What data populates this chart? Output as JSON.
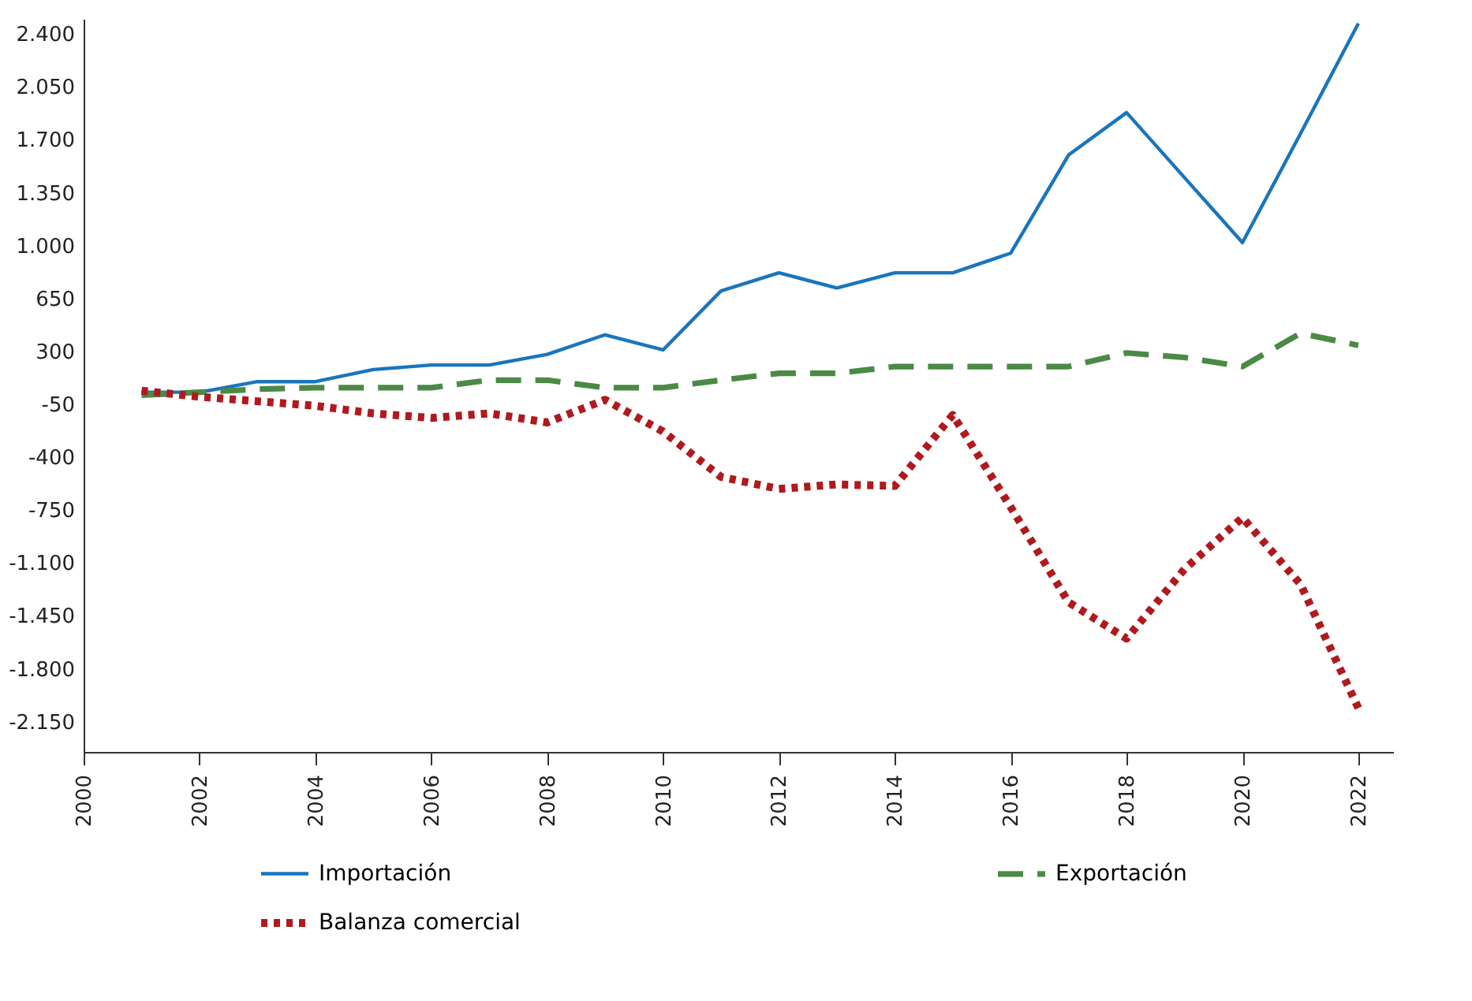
{
  "chart_data": {
    "type": "line",
    "x": [
      2001,
      2002,
      2003,
      2004,
      2005,
      2006,
      2007,
      2008,
      2009,
      2010,
      2011,
      2012,
      2013,
      2014,
      2015,
      2016,
      2017,
      2018,
      2019,
      2020,
      2021,
      2022
    ],
    "series": [
      {
        "name": "Importación",
        "color": "#1a75bc",
        "line_style": "solid",
        "values": [
          30,
          30,
          100,
          100,
          180,
          210,
          210,
          280,
          410,
          310,
          700,
          820,
          720,
          820,
          820,
          950,
          1600,
          1880,
          1450,
          1020,
          1740,
          2470
        ]
      },
      {
        "name": "Exportación",
        "color": "#4a8a45",
        "line_style": "dashed",
        "values": [
          10,
          30,
          50,
          60,
          60,
          60,
          110,
          110,
          60,
          60,
          110,
          155,
          155,
          200,
          200,
          200,
          200,
          290,
          260,
          200,
          420,
          340
        ]
      },
      {
        "name": "Balanza comercial",
        "color": "#b0191e",
        "line_style": "dotted",
        "values": [
          40,
          0,
          -30,
          -60,
          -110,
          -140,
          -110,
          -170,
          -20,
          -230,
          -530,
          -610,
          -580,
          -590,
          -120,
          -730,
          -1360,
          -1600,
          -1140,
          -800,
          -1240,
          -2060
        ]
      }
    ],
    "xlim": [
      2000,
      2022.6
    ],
    "xticks": [
      2000,
      2002,
      2004,
      2006,
      2008,
      2010,
      2012,
      2014,
      2016,
      2018,
      2020,
      2022
    ],
    "ylim": [
      -2350,
      2500
    ],
    "yticks": [
      {
        "value": 2400,
        "label": "2.400"
      },
      {
        "value": 2050,
        "label": "2.050"
      },
      {
        "value": 1700,
        "label": "1.700"
      },
      {
        "value": 1350,
        "label": "1.350"
      },
      {
        "value": 1000,
        "label": "1.000"
      },
      {
        "value": 650,
        "label": "650"
      },
      {
        "value": 300,
        "label": "300"
      },
      {
        "value": -50,
        "label": "-50"
      },
      {
        "value": -400,
        "label": "-400"
      },
      {
        "value": -750,
        "label": "-750"
      },
      {
        "value": -1100,
        "label": "-1.100"
      },
      {
        "value": -1450,
        "label": "-1.450"
      },
      {
        "value": -1800,
        "label": "-1.800"
      },
      {
        "value": -2150,
        "label": "-2.150"
      }
    ],
    "grid": false,
    "legend": "bottom"
  }
}
